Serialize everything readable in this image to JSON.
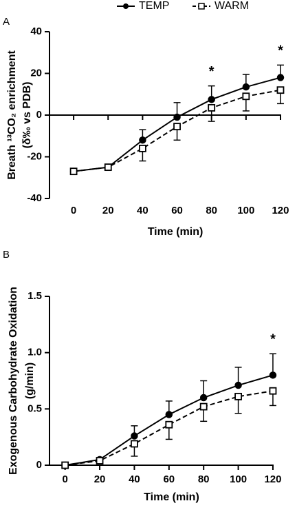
{
  "chart_data": [
    {
      "type": "line",
      "label": "A",
      "ylabel": [
        "Breath ¹³CO₂ enrichment",
        "(δ‰ vs PDB)"
      ],
      "xlabel": "Time (min)",
      "x": [
        0,
        20,
        40,
        60,
        80,
        100,
        120
      ],
      "xlim": [
        -14,
        122
      ],
      "xticks": [
        0,
        20,
        40,
        60,
        80,
        100,
        120
      ],
      "ylim": [
        -40,
        40
      ],
      "yticks": [
        -40,
        -20,
        0,
        20,
        40
      ],
      "series": [
        {
          "name": "TEMP",
          "color": "#000000",
          "marker": "circle",
          "linestyle": "solid",
          "error_direction": "up",
          "values": [
            -27,
            -25,
            -12,
            -1,
            7.5,
            13.5,
            18
          ],
          "errors": [
            null,
            null,
            5,
            7,
            6.5,
            6,
            6
          ]
        },
        {
          "name": "WARM",
          "color": "#000000",
          "marker": "square",
          "linestyle": "dashed",
          "error_direction": "down",
          "values": [
            -27,
            -25,
            -16,
            -5.5,
            3.5,
            9,
            12
          ],
          "errors": [
            null,
            null,
            6,
            6.5,
            6.5,
            7,
            6.5
          ]
        }
      ],
      "annotations": [
        {
          "text": "*",
          "x": 80
        },
        {
          "text": "*",
          "x": 120
        }
      ]
    },
    {
      "type": "line",
      "label": "B",
      "ylabel": [
        "Exogenous Carbohydrate Oxidation",
        "(g/min)"
      ],
      "xlabel": "Time (min)",
      "x": [
        0,
        20,
        40,
        60,
        80,
        100,
        120
      ],
      "xlim": [
        -9,
        122
      ],
      "xticks": [
        0,
        20,
        40,
        60,
        80,
        100,
        120
      ],
      "ylim": [
        0,
        1.5
      ],
      "yticks": [
        0,
        0.5,
        {
          "value": 1,
          "label": "1.0"
        },
        1.5
      ],
      "series": [
        {
          "color": "#000000",
          "marker": "circle",
          "linestyle": "solid",
          "error_direction": "up",
          "values": [
            0,
            0.05,
            0.26,
            0.45,
            0.6,
            0.71,
            0.8
          ],
          "errors": [
            null,
            null,
            0.09,
            0.12,
            0.15,
            0.16,
            0.19
          ]
        },
        {
          "color": "#000000",
          "marker": "square",
          "linestyle": "dashed",
          "error_direction": "down",
          "values": [
            0,
            0.04,
            0.19,
            0.36,
            0.52,
            0.61,
            0.66
          ],
          "errors": [
            null,
            null,
            0.11,
            0.13,
            0.13,
            0.15,
            0.13
          ]
        }
      ],
      "annotations": [
        {
          "text": "*",
          "x": 120
        }
      ]
    }
  ]
}
